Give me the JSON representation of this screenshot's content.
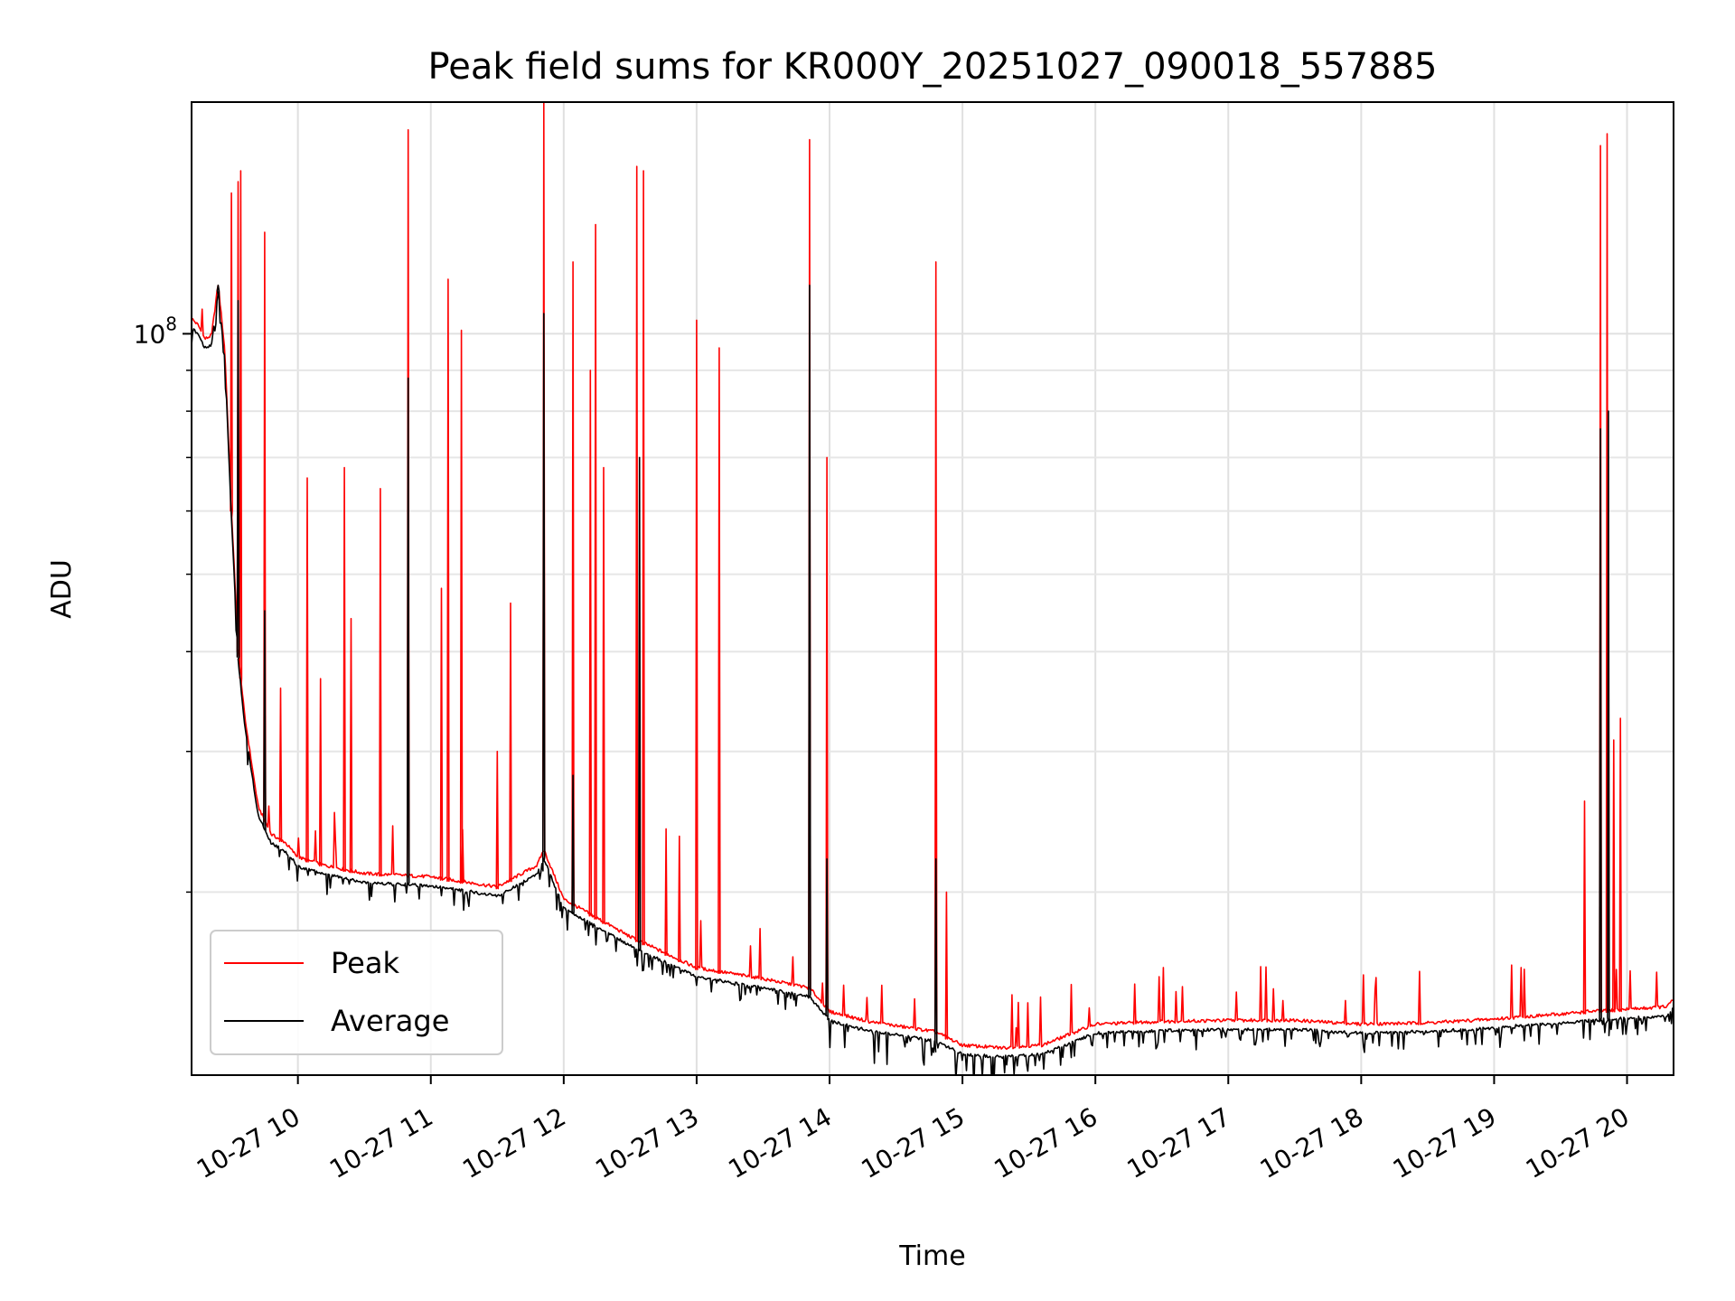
{
  "chart_data": {
    "type": "line",
    "title": "Peak field sums for KR000Y_20251027_090018_557885",
    "xlabel": "Time",
    "ylabel": "ADU",
    "yscale": "log",
    "ylim": [
      11800000,
      195000000
    ],
    "xlim_hours": [
      9.2,
      20.35
    ],
    "grid": true,
    "legend_position": "lower-left",
    "x_ticks": [
      {
        "hour": 10,
        "label": "10-27 10"
      },
      {
        "hour": 11,
        "label": "10-27 11"
      },
      {
        "hour": 12,
        "label": "10-27 12"
      },
      {
        "hour": 13,
        "label": "10-27 13"
      },
      {
        "hour": 14,
        "label": "10-27 14"
      },
      {
        "hour": 15,
        "label": "10-27 15"
      },
      {
        "hour": 16,
        "label": "10-27 16"
      },
      {
        "hour": 17,
        "label": "10-27 17"
      },
      {
        "hour": 18,
        "label": "10-27 18"
      },
      {
        "hour": 19,
        "label": "10-27 19"
      },
      {
        "hour": 20,
        "label": "10-27 20"
      }
    ],
    "y_major_ticks": [
      {
        "value": 100000000,
        "base": "10",
        "exp": "8"
      }
    ],
    "y_minor_ticks": [
      20000000,
      30000000,
      40000000,
      50000000,
      60000000,
      70000000,
      80000000,
      90000000
    ],
    "baseline_hours": [
      9.2,
      9.25,
      9.3,
      9.35,
      9.4,
      9.45,
      9.5,
      9.55,
      9.6,
      9.7,
      9.8,
      9.9,
      10.0,
      10.2,
      10.5,
      11.0,
      11.5,
      11.8,
      11.85,
      12.0,
      12.5,
      13.0,
      13.5,
      13.85,
      14.0,
      14.3,
      14.8,
      15.0,
      15.3,
      15.6,
      16.0,
      16.5,
      17.0,
      17.5,
      18.0,
      18.5,
      19.0,
      19.5,
      19.7,
      20.0,
      20.3,
      20.35
    ],
    "baseline_values": [
      104000000,
      102000000,
      98000000,
      99000000,
      115000000,
      95000000,
      60000000,
      40000000,
      33000000,
      25500000,
      23500000,
      23000000,
      22000000,
      21500000,
      21000000,
      20800000,
      20200000,
      21500000,
      22500000,
      19500000,
      17500000,
      16000000,
      15500000,
      15100000,
      14100000,
      13700000,
      13300000,
      12800000,
      12700000,
      12800000,
      13600000,
      13700000,
      13750000,
      13750000,
      13600000,
      13650000,
      13800000,
      14000000,
      14100000,
      14200000,
      14300000,
      14600000
    ],
    "series": [
      {
        "name": "Peak",
        "color": "#ff0000",
        "spikes": [
          {
            "hour": 9.5,
            "value": 150000000
          },
          {
            "hour": 9.55,
            "value": 155000000
          },
          {
            "hour": 9.57,
            "value": 160000000
          },
          {
            "hour": 9.75,
            "value": 134000000
          },
          {
            "hour": 9.87,
            "value": 36000000
          },
          {
            "hour": 10.07,
            "value": 66000000
          },
          {
            "hour": 10.17,
            "value": 37000000
          },
          {
            "hour": 10.35,
            "value": 68000000
          },
          {
            "hour": 10.4,
            "value": 44000000
          },
          {
            "hour": 10.62,
            "value": 64000000
          },
          {
            "hour": 10.83,
            "value": 180000000
          },
          {
            "hour": 11.08,
            "value": 48000000
          },
          {
            "hour": 11.13,
            "value": 117000000
          },
          {
            "hour": 11.23,
            "value": 101000000
          },
          {
            "hour": 11.5,
            "value": 30000000
          },
          {
            "hour": 11.6,
            "value": 46000000
          },
          {
            "hour": 11.85,
            "value": 195000000
          },
          {
            "hour": 12.07,
            "value": 123000000
          },
          {
            "hour": 12.2,
            "value": 90000000
          },
          {
            "hour": 12.24,
            "value": 137000000
          },
          {
            "hour": 12.3,
            "value": 68000000
          },
          {
            "hour": 12.55,
            "value": 162000000
          },
          {
            "hour": 12.6,
            "value": 160000000
          },
          {
            "hour": 12.77,
            "value": 24000000
          },
          {
            "hour": 12.87,
            "value": 23500000
          },
          {
            "hour": 13.0,
            "value": 104000000
          },
          {
            "hour": 13.17,
            "value": 96000000
          },
          {
            "hour": 13.85,
            "value": 175000000
          },
          {
            "hour": 13.98,
            "value": 70000000
          },
          {
            "hour": 14.8,
            "value": 123000000
          },
          {
            "hour": 14.88,
            "value": 20000000
          },
          {
            "hour": 19.68,
            "value": 26000000
          },
          {
            "hour": 19.8,
            "value": 172000000
          },
          {
            "hour": 19.85,
            "value": 178000000
          },
          {
            "hour": 19.9,
            "value": 31000000
          },
          {
            "hour": 19.95,
            "value": 33000000
          }
        ]
      },
      {
        "name": "Average",
        "color": "#000000",
        "spikes": [
          {
            "hour": 9.4,
            "value": 115000000
          },
          {
            "hour": 9.55,
            "value": 110000000
          },
          {
            "hour": 9.75,
            "value": 45000000
          },
          {
            "hour": 10.83,
            "value": 88000000
          },
          {
            "hour": 11.85,
            "value": 106000000
          },
          {
            "hour": 12.07,
            "value": 28000000
          },
          {
            "hour": 12.57,
            "value": 70000000
          },
          {
            "hour": 13.85,
            "value": 115000000
          },
          {
            "hour": 13.98,
            "value": 22000000
          },
          {
            "hour": 14.8,
            "value": 22000000
          },
          {
            "hour": 19.8,
            "value": 76000000
          },
          {
            "hour": 19.86,
            "value": 80000000
          }
        ]
      }
    ]
  }
}
